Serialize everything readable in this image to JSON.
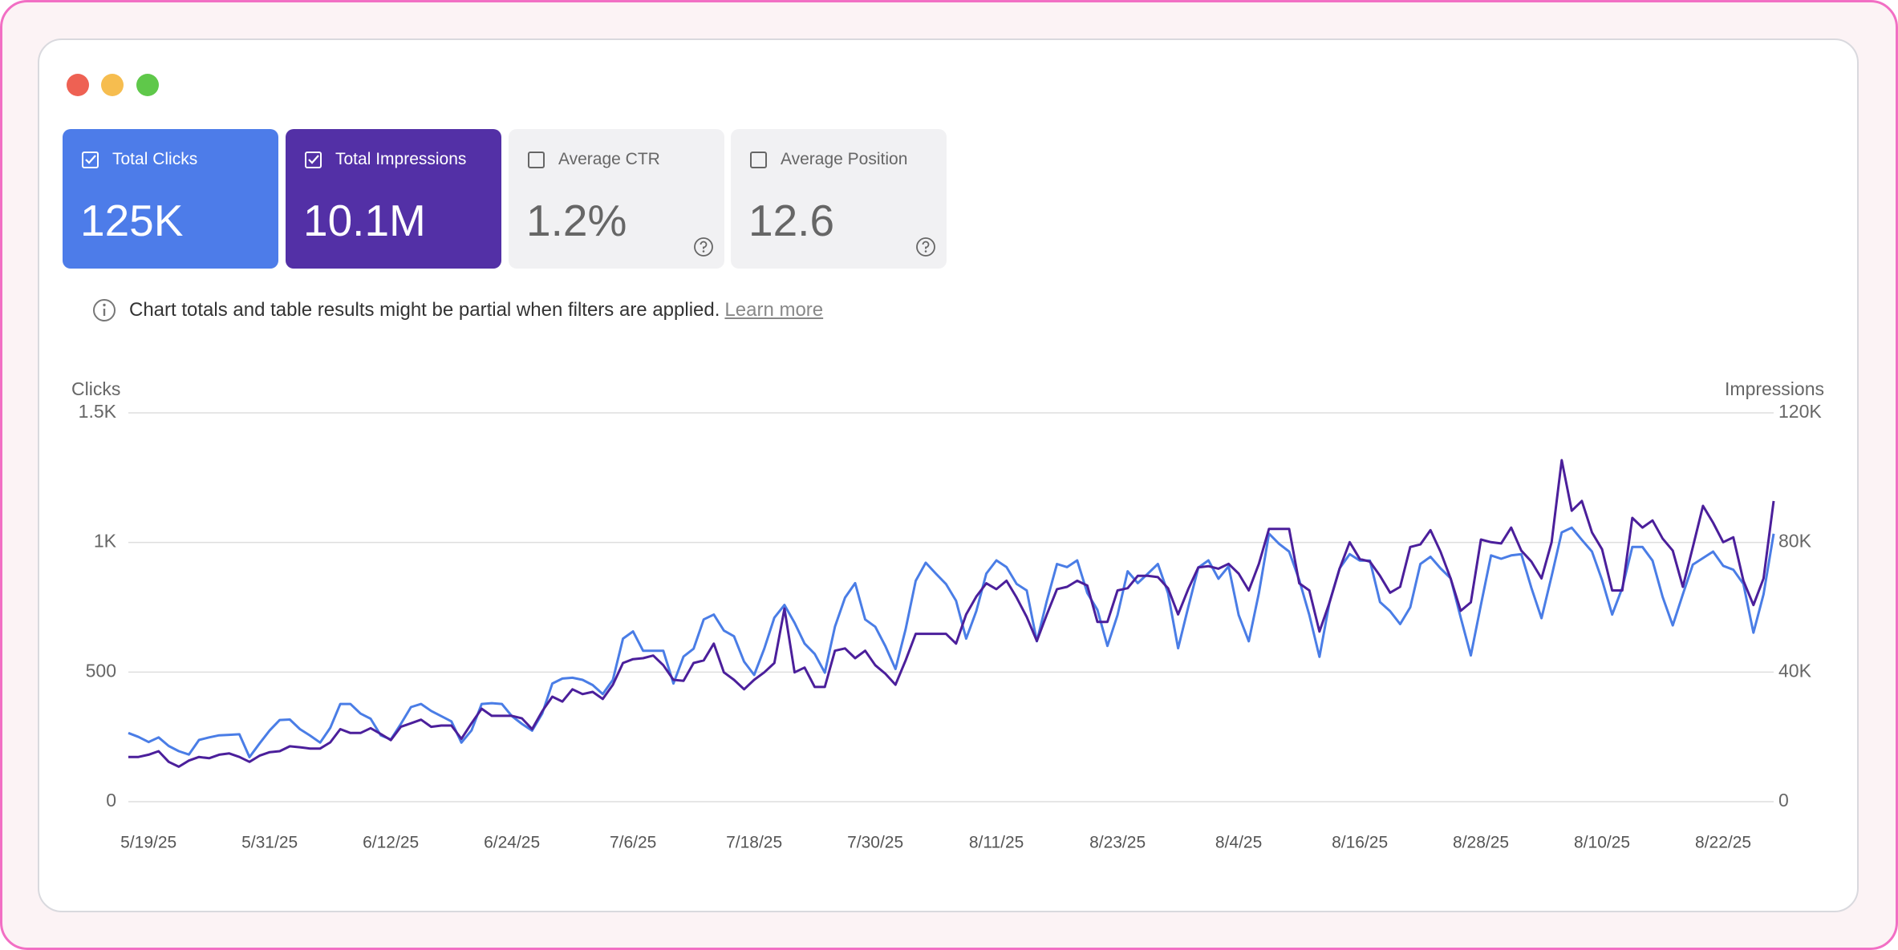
{
  "cards": [
    {
      "label": "Total Clicks",
      "value": "125K",
      "selected": true,
      "color": "#4d7ce9"
    },
    {
      "label": "Total Impressions",
      "value": "10.1M",
      "selected": true,
      "color": "#5330a6"
    },
    {
      "label": "Average CTR",
      "value": "1.2%",
      "selected": false
    },
    {
      "label": "Average Position",
      "value": "12.6",
      "selected": false
    }
  ],
  "notice": {
    "text": "Chart totals and table results might be partial when filters are applied.",
    "link": "Learn more"
  },
  "chart_data": {
    "type": "line",
    "categories": [
      null,
      null,
      "5/19/25",
      null,
      null,
      null,
      null,
      null,
      null,
      null,
      null,
      null,
      null,
      null,
      "5/31/25",
      null,
      null,
      null,
      null,
      null,
      null,
      null,
      null,
      null,
      null,
      null,
      "6/12/25",
      null,
      null,
      null,
      null,
      null,
      null,
      null,
      null,
      null,
      null,
      null,
      "6/24/25",
      null,
      null,
      null,
      null,
      null,
      null,
      null,
      null,
      null,
      null,
      null,
      "7/6/25",
      null,
      null,
      null,
      null,
      null,
      null,
      null,
      null,
      null,
      null,
      null,
      "7/18/25",
      null,
      null,
      null,
      null,
      null,
      null,
      null,
      null,
      null,
      null,
      null,
      "7/30/25",
      null,
      null,
      null,
      null,
      null,
      null,
      null,
      null,
      null,
      null,
      null,
      "8/11/25",
      null,
      null,
      null,
      null,
      null,
      null,
      null,
      null,
      null,
      null,
      null,
      "8/23/25",
      null,
      null,
      null,
      null,
      null,
      null,
      null,
      null,
      null,
      null,
      null,
      "8/4/25",
      null,
      null,
      null,
      null,
      null,
      null,
      null,
      null,
      null,
      null,
      null,
      "8/16/25",
      null,
      null,
      null,
      null,
      null,
      null,
      null,
      null,
      null,
      null,
      null,
      "8/28/25",
      null,
      null,
      null,
      null,
      null,
      null,
      null,
      null,
      null,
      null,
      null,
      "8/10/25",
      null,
      null,
      null,
      null,
      null,
      null,
      null,
      null,
      null,
      null,
      null,
      "8/22/25",
      null,
      null,
      null,
      null,
      null
    ],
    "series": [
      {
        "name": "Clicks",
        "color": "#4a7de6",
        "values": [
          265,
          250,
          230,
          248,
          215,
          195,
          182,
          238,
          248,
          256,
          258,
          260,
          172,
          225,
          275,
          315,
          317,
          280,
          255,
          228,
          285,
          377,
          377,
          340,
          320,
          256,
          240,
          300,
          365,
          377,
          350,
          330,
          310,
          228,
          275,
          377,
          380,
          377,
          330,
          300,
          274,
          340,
          456,
          475,
          478,
          470,
          450,
          415,
          470,
          629,
          657,
          582,
          582,
          582,
          456,
          560,
          590,
          703,
          722,
          660,
          638,
          540,
          489,
          590,
          710,
          759,
          690,
          610,
          570,
          498,
          675,
          787,
          843,
          703,
          675,
          600,
          512,
          665,
          852,
          922,
          880,
          840,
          775,
          629,
          735,
          880,
          931,
          905,
          840,
          815,
          619,
          775,
          917,
          905,
          931,
          805,
          740,
          601,
          720,
          889,
          843,
          880,
          917,
          805,
          592,
          750,
          903,
          931,
          860,
          908,
          720,
          619,
          805,
          1034,
          995,
          965,
          855,
          720,
          559,
          770,
          900,
          955,
          930,
          930,
          770,
          735,
          685,
          750,
          917,
          945,
          900,
          862,
          710,
          564,
          760,
          950,
          937,
          950,
          955,
          825,
          708,
          870,
          1039,
          1057,
          1010,
          965,
          855,
          722,
          825,
          983,
          983,
          930,
          790,
          680,
          800,
          915,
          940,
          965,
          910,
          895,
          840,
          652,
          800,
          1034
        ]
      },
      {
        "name": "Impressions",
        "color": "#4b1f9b",
        "axis": "y2",
        "values": [
          13800,
          13800,
          14500,
          15600,
          12300,
          10800,
          12700,
          13800,
          13400,
          14500,
          14900,
          13800,
          12300,
          14200,
          15300,
          15600,
          17100,
          16800,
          16400,
          16400,
          18300,
          22400,
          21200,
          21200,
          22700,
          20900,
          19000,
          23100,
          24200,
          25300,
          23100,
          23500,
          23500,
          19400,
          24200,
          28700,
          26500,
          26500,
          26500,
          25700,
          22400,
          27900,
          32400,
          30900,
          34700,
          33200,
          33900,
          31700,
          36100,
          42800,
          44000,
          44300,
          45100,
          42100,
          37600,
          37300,
          42800,
          43600,
          48800,
          39900,
          37600,
          34700,
          37600,
          39900,
          42800,
          59600,
          39900,
          41400,
          35400,
          35400,
          46600,
          47300,
          44300,
          46600,
          42100,
          39500,
          36100,
          43600,
          51800,
          51800,
          51800,
          51800,
          48800,
          57800,
          63300,
          67400,
          65600,
          68200,
          63000,
          57000,
          49600,
          57800,
          65600,
          66300,
          68200,
          66700,
          55500,
          55500,
          65200,
          65900,
          69700,
          69700,
          69300,
          65900,
          57800,
          65600,
          72300,
          72700,
          71900,
          73400,
          70400,
          65200,
          73400,
          84200,
          84200,
          84200,
          67400,
          65200,
          52500,
          61500,
          71900,
          80100,
          74900,
          74100,
          69700,
          64500,
          66300,
          78600,
          79400,
          83800,
          77100,
          68900,
          58900,
          61500,
          80900,
          80100,
          79700,
          84600,
          77500,
          74100,
          68900,
          80100,
          105400,
          89800,
          92800,
          83100,
          77900,
          65200,
          65200,
          87600,
          84600,
          86800,
          81200,
          77500,
          66300,
          78600,
          91300,
          86100,
          80100,
          81600,
          68200,
          60700,
          68900,
          92800
        ]
      }
    ],
    "ylim": [
      0,
      1500
    ],
    "yticks": [
      0,
      500,
      {
        "value": 1000,
        "label": "1K"
      },
      {
        "value": 1500,
        "label": "1.5K"
      }
    ],
    "y2lim": [
      0,
      120000
    ],
    "y2ticks": [
      0,
      {
        "value": 40000,
        "label": "40K"
      },
      {
        "value": 80000,
        "label": "80K"
      },
      {
        "value": 120000,
        "label": "120K"
      }
    ],
    "grid": true
  }
}
